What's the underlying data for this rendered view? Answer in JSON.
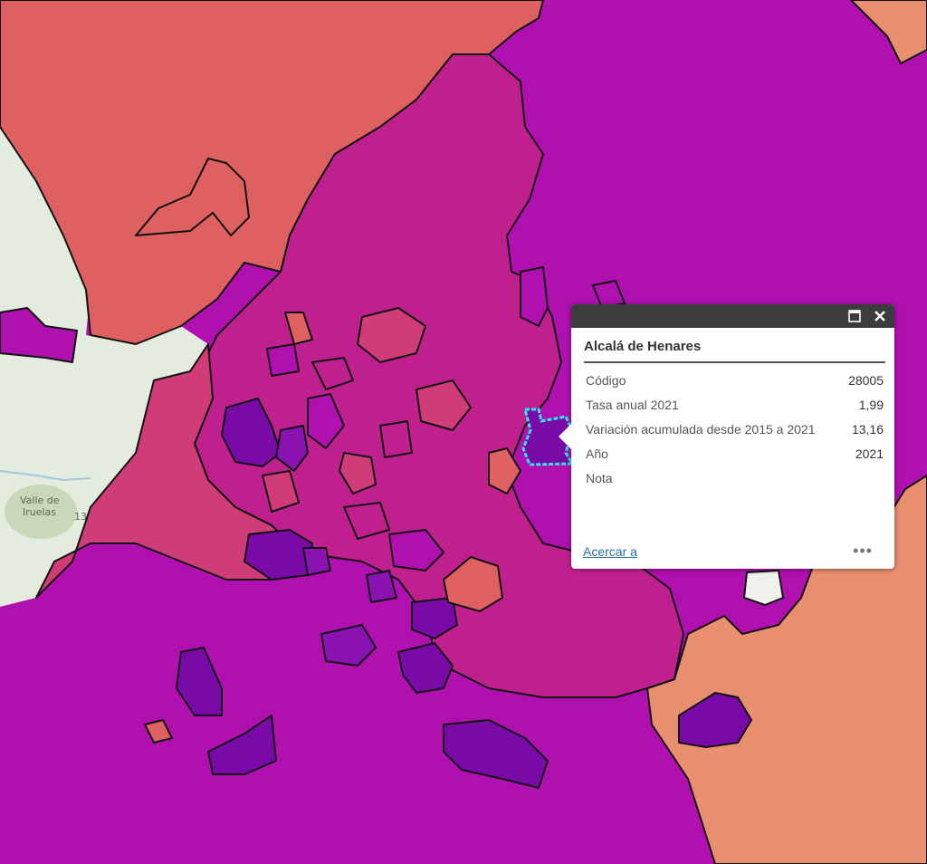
{
  "map": {
    "colors": {
      "purple_magenta": "#b010b0",
      "dark_violet": "#8a12b2",
      "deep_violet": "#7a0aa8",
      "magenta_red": "#c0208e",
      "rose": "#cf3c78",
      "salmon_red": "#df6060",
      "peach": "#e88f70",
      "basemap_green": "#e4ebdf",
      "outline": "#111111",
      "selection": "#2ee6ee"
    },
    "basemap_labels": [
      "Valle de",
      "Iruelas",
      "13"
    ]
  },
  "popup": {
    "title": "Alcalá de Henares",
    "fields": [
      {
        "label": "Código",
        "value": "28005"
      },
      {
        "label": "Tasa anual 2021",
        "value": "1,99"
      },
      {
        "label": "Variación acumulada desde 2015 a 2021",
        "value": "13,16"
      },
      {
        "label": "Año",
        "value": "2021"
      },
      {
        "label": "Nota",
        "value": ""
      }
    ],
    "zoom_link": "Acercar a",
    "more_label": "•••",
    "maximize_icon": "maximize-icon",
    "close_icon": "close-icon"
  }
}
